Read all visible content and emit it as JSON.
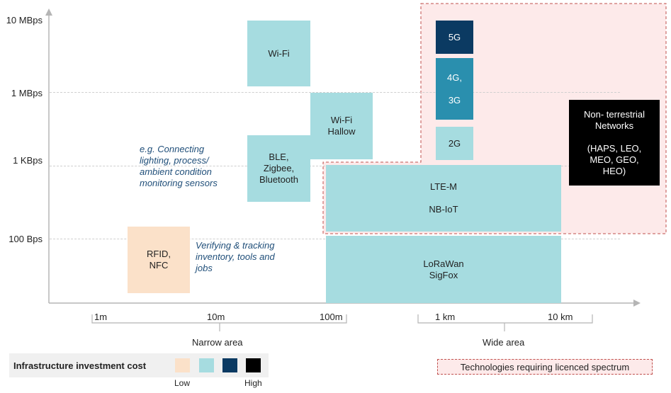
{
  "y_axis": {
    "labels": [
      "10 MBps",
      "1 MBps",
      "1 KBps",
      "100 Bps"
    ]
  },
  "x_axis": {
    "labels": [
      "1m",
      "10m",
      "100m",
      "1 km",
      "10 km"
    ]
  },
  "area_labels": {
    "narrow": "Narrow area",
    "wide": "Wide area"
  },
  "technologies": {
    "wifi": "Wi-Fi",
    "wifi_hallow": [
      "Wi-Fi",
      "Hallow"
    ],
    "ble": [
      "BLE,",
      "Zigbee,",
      "Bluetooth"
    ],
    "rfid": [
      "RFID,",
      "NFC"
    ],
    "lte_m": "LTE-M",
    "nb_iot": "NB-IoT",
    "lora": [
      "LoRaWan",
      "SigFox"
    ],
    "g5": "5G",
    "g4": "4G,",
    "g3": "3G",
    "g2": "2G",
    "ntn": [
      "Non- terrestrial",
      "Networks",
      "",
      "(HAPS, LEO,",
      "MEO, GEO,",
      "HEO)"
    ]
  },
  "annotations": {
    "sensors": [
      "e.g. Connecting",
      "lighting, process/",
      "ambient condition",
      "monitoring  sensors"
    ],
    "tracking": [
      "Verifying  & tracking",
      "inventory, tools and",
      "jobs"
    ]
  },
  "legend": {
    "title": "Infrastructure investment cost",
    "low": "Low",
    "high": "High",
    "colors": [
      "#fbe1c9",
      "#a6dce0",
      "#0b3a62",
      "#000000"
    ],
    "licensed": "Technologies requiring licenced spectrum"
  },
  "colors": {
    "light": "#a6dce0",
    "mid": "#2a8fae",
    "dark": "#0b3a62",
    "peach": "#fbe1c9",
    "licensed_bg": "#fdeaea",
    "licensed_border": "#c0504d",
    "note": "#1f4e79"
  }
}
